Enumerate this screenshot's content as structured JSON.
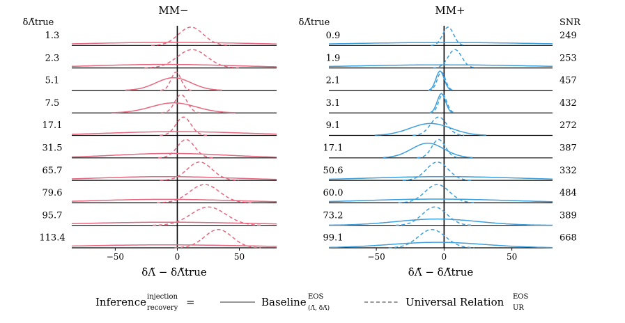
{
  "chart_data": {
    "type": "ridgeline",
    "panels": [
      {
        "title": "MM−",
        "row_header": "δΛ̃true",
        "row_labels": [
          "1.3",
          "2.3",
          "5.1",
          "7.5",
          "17.1",
          "31.5",
          "65.7",
          "79.6",
          "95.7",
          "113.4"
        ],
        "color": "#e8667e",
        "xlabel": "δΛ̃ − δΛ̃true",
        "xlim": [
          -85,
          80
        ],
        "xticks": [
          -50,
          0,
          50
        ],
        "xtick_labels": [
          "−50",
          "0",
          "50"
        ],
        "universal_relation_peaks": [
          11,
          12,
          -1,
          3,
          5,
          7,
          18,
          22,
          25,
          33
        ],
        "universal_relation_widths": [
          10,
          12,
          4,
          5,
          6,
          7,
          10,
          12,
          14,
          11
        ],
        "baseline_widths": [
          70,
          60,
          14,
          18,
          55,
          45,
          55,
          60,
          70,
          75
        ],
        "baseline_centers": [
          -5,
          -10,
          -3,
          -3,
          0,
          -5,
          -10,
          -10,
          -8,
          -10
        ]
      },
      {
        "title": "MM+",
        "row_header": "δΛ̃true",
        "row_labels": [
          "0.9",
          "1.9",
          "2.1",
          "3.1",
          "9.1",
          "17.1",
          "50.6",
          "60.0",
          "73.2",
          "99.1"
        ],
        "right_header": "SNR",
        "snr": [
          "249",
          "253",
          "457",
          "432",
          "272",
          "387",
          "332",
          "484",
          "389",
          "668"
        ],
        "color": "#3b9ede",
        "xlabel": "δΛ̃ − δΛ̃true",
        "xlim": [
          -85,
          80
        ],
        "xticks": [
          -50,
          0,
          50
        ],
        "xtick_labels": [
          "−50",
          "0",
          "50"
        ],
        "universal_relation_peaks": [
          3,
          8,
          -2,
          -1,
          -4,
          -4,
          -5,
          -5,
          -7,
          -9
        ],
        "universal_relation_widths": [
          4,
          5,
          3,
          3,
          6,
          5,
          8,
          9,
          9,
          10
        ],
        "baseline_widths": [
          75,
          70,
          3,
          3,
          15,
          12,
          55,
          55,
          30,
          35
        ],
        "baseline_centers": [
          0,
          0,
          -3,
          -2,
          -10,
          -12,
          0,
          -5,
          -5,
          -5
        ]
      }
    ],
    "legend": {
      "prefix": "Inference",
      "prefix_sup": "injection",
      "prefix_sub": "recovery",
      "equals": "=",
      "baseline_label": "Baseline",
      "baseline_sup": "EOS",
      "baseline_sub": "(Λ̃, δΛ̃)",
      "ur_label": "Universal Relation",
      "ur_sup": "EOS",
      "ur_sub": "UR"
    }
  }
}
